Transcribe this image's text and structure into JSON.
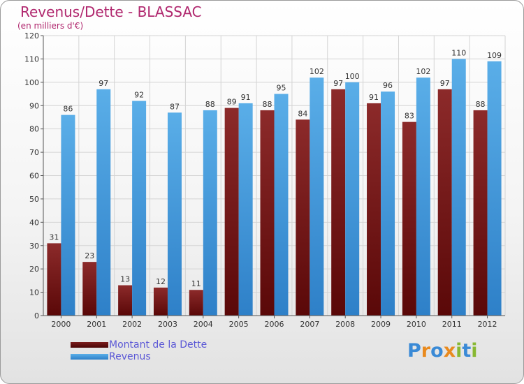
{
  "title": "Revenus/Dette - BLASSAC",
  "subtitle": "(en milliers d'€)",
  "chart_data": {
    "type": "bar",
    "categories": [
      "2000",
      "2001",
      "2002",
      "2003",
      "2004",
      "2005",
      "2006",
      "2007",
      "2008",
      "2009",
      "2010",
      "2011",
      "2012"
    ],
    "series": [
      {
        "name": "Montant de la Dette",
        "values": [
          31,
          23,
          13,
          12,
          11,
          89,
          88,
          84,
          97,
          91,
          83,
          97,
          88
        ],
        "color": "#7a1c1c"
      },
      {
        "name": "Revenus",
        "values": [
          86,
          97,
          92,
          87,
          88,
          91,
          95,
          102,
          100,
          96,
          102,
          110,
          109
        ],
        "color": "#4fa3e3"
      }
    ],
    "ylim": [
      0,
      120
    ],
    "yticks": [
      0,
      10,
      20,
      30,
      40,
      50,
      60,
      70,
      80,
      90,
      100,
      110,
      120
    ],
    "grid": true,
    "legend_position": "bottom-left"
  },
  "legend": {
    "debt_label": "Montant de la Dette",
    "revenue_label": "Revenus",
    "debt_color": "#6b0f0f",
    "revenue_color": "#4fa3e3"
  },
  "logo": {
    "letters": [
      "P",
      "r",
      "o",
      "x",
      "i",
      "t",
      "i"
    ],
    "colors": [
      "#3a8ad6",
      "#e98a1e",
      "#3a8ad6",
      "#e98a1e",
      "#88b832",
      "#3a8ad6",
      "#88b832"
    ]
  }
}
